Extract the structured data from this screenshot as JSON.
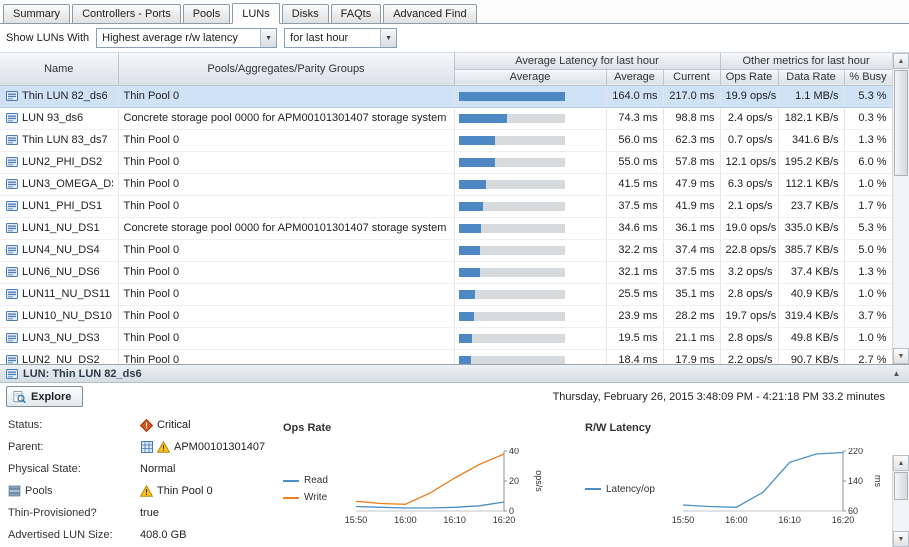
{
  "colors": {
    "accent_bar": "#4e88c4",
    "selected_row": "#cfe2f6",
    "critical": "#d9531e",
    "warning": "#fbc31c",
    "read_line": "#4a90c4",
    "write_line": "#e8821e"
  },
  "tabs": [
    {
      "label": "Summary",
      "active": false
    },
    {
      "label": "Controllers - Ports",
      "active": false
    },
    {
      "label": "Pools",
      "active": false
    },
    {
      "label": "LUNs",
      "active": true
    },
    {
      "label": "Disks",
      "active": false
    },
    {
      "label": "FAQts",
      "active": false
    },
    {
      "label": "Advanced Find",
      "active": false
    }
  ],
  "filter": {
    "label": "Show LUNs With",
    "metric": "Highest average r/w latency",
    "period": "for last hour"
  },
  "table": {
    "groups": {
      "latency": "Average Latency for last hour",
      "other": "Other metrics for last hour"
    },
    "headers": {
      "name": "Name",
      "pools": "Pools/Aggregates/Parity Groups",
      "bar": "Average",
      "average": "Average",
      "current": "Current",
      "ops": "Ops Rate",
      "data": "Data Rate",
      "busy": "% Busy"
    },
    "bar_max_ms": 164.0,
    "rows": [
      {
        "name": "Thin LUN 82_ds6",
        "pool": "Thin Pool 0",
        "bar_ms": 164.0,
        "average": "164.0 ms",
        "current": "217.0 ms",
        "ops": "19.9 ops/s",
        "data": "1.1 MB/s",
        "busy": "5.3 %",
        "selected": true
      },
      {
        "name": "LUN 93_ds6",
        "pool": "Concrete storage pool 0000 for APM00101301407 storage system",
        "bar_ms": 74.3,
        "average": "74.3 ms",
        "current": "98.8 ms",
        "ops": "2.4 ops/s",
        "data": "182.1 KB/s",
        "busy": "0.3 %",
        "selected": false
      },
      {
        "name": "Thin LUN 83_ds7",
        "pool": "Thin Pool 0",
        "bar_ms": 56.0,
        "average": "56.0 ms",
        "current": "62.3 ms",
        "ops": "0.7 ops/s",
        "data": "341.6 B/s",
        "busy": "1.3 %",
        "selected": false
      },
      {
        "name": "LUN2_PHI_DS2",
        "pool": "Thin Pool 0",
        "bar_ms": 55.0,
        "average": "55.0 ms",
        "current": "57.8 ms",
        "ops": "12.1 ops/s",
        "data": "195.2 KB/s",
        "busy": "6.0 %",
        "selected": false
      },
      {
        "name": "LUN3_OMEGA_DS3",
        "pool": "Thin Pool 0",
        "bar_ms": 41.5,
        "average": "41.5 ms",
        "current": "47.9 ms",
        "ops": "6.3 ops/s",
        "data": "112.1 KB/s",
        "busy": "1.0 %",
        "selected": false
      },
      {
        "name": "LUN1_PHI_DS1",
        "pool": "Thin Pool 0",
        "bar_ms": 37.5,
        "average": "37.5 ms",
        "current": "41.9 ms",
        "ops": "2.1 ops/s",
        "data": "23.7 KB/s",
        "busy": "1.7 %",
        "selected": false
      },
      {
        "name": "LUN1_NU_DS1",
        "pool": "Concrete storage pool 0000 for APM00101301407 storage system",
        "bar_ms": 34.6,
        "average": "34.6 ms",
        "current": "36.1 ms",
        "ops": "19.0 ops/s",
        "data": "335.0 KB/s",
        "busy": "5.3 %",
        "selected": false
      },
      {
        "name": "LUN4_NU_DS4",
        "pool": "Thin Pool 0",
        "bar_ms": 32.2,
        "average": "32.2 ms",
        "current": "37.4 ms",
        "ops": "22.8 ops/s",
        "data": "385.7 KB/s",
        "busy": "5.0 %",
        "selected": false
      },
      {
        "name": "LUN6_NU_DS6",
        "pool": "Thin Pool 0",
        "bar_ms": 32.1,
        "average": "32.1 ms",
        "current": "37.5 ms",
        "ops": "3.2 ops/s",
        "data": "37.4 KB/s",
        "busy": "1.3 %",
        "selected": false
      },
      {
        "name": "LUN11_NU_DS11",
        "pool": "Thin Pool 0",
        "bar_ms": 25.5,
        "average": "25.5 ms",
        "current": "35.1 ms",
        "ops": "2.8 ops/s",
        "data": "40.9 KB/s",
        "busy": "1.0 %",
        "selected": false
      },
      {
        "name": "LUN10_NU_DS10",
        "pool": "Thin Pool 0",
        "bar_ms": 23.9,
        "average": "23.9 ms",
        "current": "28.2 ms",
        "ops": "19.7 ops/s",
        "data": "319.4 KB/s",
        "busy": "3.7 %",
        "selected": false
      },
      {
        "name": "LUN3_NU_DS3",
        "pool": "Thin Pool 0",
        "bar_ms": 19.5,
        "average": "19.5 ms",
        "current": "21.1 ms",
        "ops": "2.8 ops/s",
        "data": "49.8 KB/s",
        "busy": "1.0 %",
        "selected": false
      },
      {
        "name": "LUN2_NU_DS2",
        "pool": "Thin Pool 0",
        "bar_ms": 18.4,
        "average": "18.4 ms",
        "current": "17.9 ms",
        "ops": "2.2 ops/s",
        "data": "90.7 KB/s",
        "busy": "2.7 %",
        "selected": false
      }
    ]
  },
  "detail": {
    "title": "LUN: Thin LUN 82_ds6",
    "explore": "Explore",
    "time_range": "Thursday, February 26, 2015  3:48:09 PM - 4:21:18 PM  33.2 minutes",
    "fields": [
      {
        "label": "Status:",
        "value": "Critical",
        "value_icon": "critical"
      },
      {
        "label": "Parent:",
        "value": "APM00101301407",
        "value_type_icon": "storage-system",
        "value_icon": "warning"
      },
      {
        "label": "Physical State:",
        "value": "Normal"
      },
      {
        "label": "Pools",
        "label_icon": "pools",
        "value": "Thin Pool 0",
        "value_icon": "warning"
      },
      {
        "label": "Thin-Provisioned?",
        "value": "true"
      },
      {
        "label": "Advertised LUN Size:",
        "value": "408.0 GB"
      }
    ]
  },
  "chart_data": [
    {
      "type": "line",
      "title": "Ops Rate",
      "ylabel": "ops/s",
      "ylim": [
        0,
        40
      ],
      "yticks": [
        0,
        20,
        40
      ],
      "x": [
        "15:50",
        "15:55",
        "16:00",
        "16:05",
        "16:10",
        "16:15",
        "16:20"
      ],
      "xticks": [
        "15:50",
        "16:00",
        "16:10",
        "16:20"
      ],
      "legend_position": "left",
      "grid": false,
      "series": [
        {
          "name": "Read",
          "color": "#4a90c4",
          "values": [
            3.0,
            2.5,
            2.0,
            2.0,
            2.5,
            3.5,
            6.0
          ]
        },
        {
          "name": "Write",
          "color": "#e8821e",
          "values": [
            6.5,
            5.0,
            4.5,
            12.0,
            22.0,
            31.0,
            38.0
          ]
        }
      ]
    },
    {
      "type": "line",
      "title": "R/W Latency",
      "ylabel": "ms",
      "ylim": [
        60,
        220
      ],
      "yticks": [
        60,
        140,
        220
      ],
      "x": [
        "15:50",
        "15:55",
        "16:00",
        "16:05",
        "16:10",
        "16:15",
        "16:20"
      ],
      "xticks": [
        "15:50",
        "16:00",
        "16:10",
        "16:20"
      ],
      "legend_position": "left",
      "grid": false,
      "series": [
        {
          "name": "Latency/op",
          "color": "#4a90c4",
          "values": [
            76,
            72,
            70,
            110,
            190,
            212,
            216
          ]
        }
      ]
    }
  ]
}
